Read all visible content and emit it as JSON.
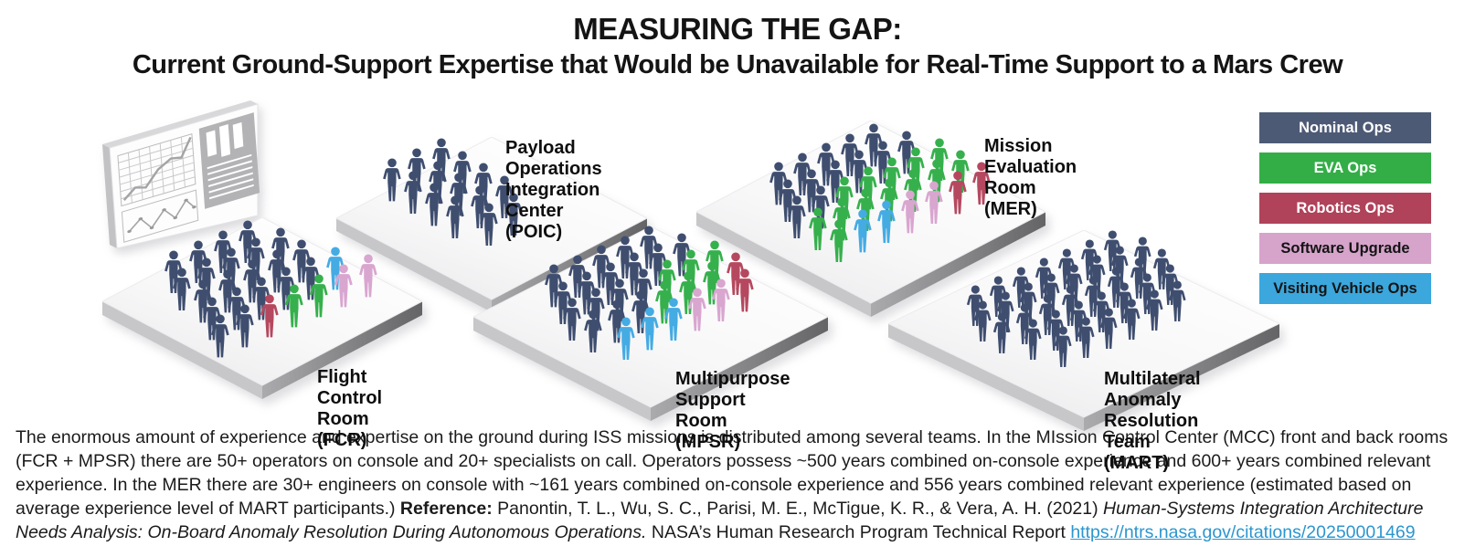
{
  "title": "MEASURING THE GAP:",
  "subtitle": "Current Ground-Support Expertise that Would be Unavailable for Real-Time Support to a Mars Crew",
  "figure_colors": {
    "N": "#3f4e6f",
    "E": "#36b04c",
    "R": "#b5485f",
    "S": "#d9a6d0",
    "V": "#45abe3"
  },
  "legend": {
    "items": [
      {
        "id": "nominal",
        "label": "Nominal Ops",
        "color": "#4d5a75",
        "text_color": "#ffffff"
      },
      {
        "id": "eva",
        "label": "EVA Ops",
        "color": "#33ae47",
        "text_color": "#ffffff"
      },
      {
        "id": "robotics",
        "label": "Robotics Ops",
        "color": "#b0425a",
        "text_color": "#ffffff"
      },
      {
        "id": "software",
        "label": "Software Upgrade",
        "color": "#d6a3cb",
        "text_color": "#141414"
      },
      {
        "id": "visiting",
        "label": "Visiting Vehicle Ops",
        "color": "#3ba7dd",
        "text_color": "#141414"
      }
    ]
  },
  "rooms": [
    {
      "id": "poic",
      "label": "Payload Operations\nIntegration Center (POIC)",
      "counts": {
        "nominal": 14,
        "eva": 0,
        "robotics": 0,
        "software": 0,
        "visiting": 0
      },
      "rows": [
        [
          "N",
          "N",
          "N"
        ],
        [
          "N",
          "N",
          "N"
        ],
        [
          "N",
          "N",
          "N"
        ],
        [
          "N",
          "N",
          "N"
        ],
        [
          "N",
          "N"
        ]
      ]
    },
    {
      "id": "mer",
      "label": "Mission Evaluation\nRoom (MER)",
      "counts": {
        "nominal": 13,
        "eva": 13,
        "robotics": 2,
        "software": 2,
        "visiting": 2
      },
      "rows": [
        [
          "N",
          "N",
          "N",
          "N",
          "N"
        ],
        [
          "N",
          "N",
          "N",
          "N",
          "N",
          "N"
        ],
        [
          "N",
          "N",
          "E",
          "E",
          "E",
          "E",
          "E"
        ],
        [
          "E",
          "E",
          "E",
          "E",
          "E",
          "E",
          "E"
        ],
        [
          "E",
          "V",
          "V",
          "S",
          "S",
          "R",
          "R"
        ]
      ]
    },
    {
      "id": "fcr",
      "label": "Flight Control\nRoom (FCR)",
      "counts": {
        "nominal": 21,
        "eva": 2,
        "robotics": 1,
        "software": 2,
        "visiting": 1
      },
      "rows": [
        [
          "N",
          "N",
          "N",
          "N"
        ],
        [
          "N",
          "N",
          "N",
          "N",
          "N"
        ],
        [
          "N",
          "N",
          "N",
          "N",
          "N"
        ],
        [
          "N",
          "N",
          "N",
          "N",
          "N",
          "V"
        ],
        [
          "N",
          "N",
          "R",
          "E",
          "E",
          "S",
          "S"
        ]
      ]
    },
    {
      "id": "mpsr",
      "label": "Multipurpose Support\nRoom (MPSR)",
      "counts": {
        "nominal": 18,
        "eva": 6,
        "robotics": 2,
        "software": 2,
        "visiting": 3
      },
      "rows": [
        [
          "N",
          "N",
          "N",
          "N",
          "N"
        ],
        [
          "N",
          "N",
          "N",
          "N",
          "N",
          "N"
        ],
        [
          "N",
          "N",
          "N",
          "N",
          "E",
          "E",
          "E"
        ],
        [
          "N",
          "N",
          "N",
          "E",
          "E",
          "E",
          "R"
        ],
        [
          "V",
          "V",
          "V",
          "S",
          "S",
          "R"
        ]
      ]
    },
    {
      "id": "mart",
      "label": "Multilateral Anomaly\nResolution Team (MART)",
      "counts": {
        "nominal": 36,
        "eva": 0,
        "robotics": 0,
        "software": 0,
        "visiting": 0
      },
      "rows": [
        [
          "N",
          "N",
          "N",
          "N",
          "N",
          "N",
          "N"
        ],
        [
          "N",
          "N",
          "N",
          "N",
          "N",
          "N",
          "N",
          "N"
        ],
        [
          "N",
          "N",
          "N",
          "N",
          "N",
          "N",
          "N",
          "N"
        ],
        [
          "N",
          "N",
          "N",
          "N",
          "N",
          "N",
          "N"
        ],
        [
          "N",
          "N",
          "N",
          "N",
          "N",
          "N"
        ]
      ]
    }
  ],
  "footer": {
    "segments": [
      {
        "style": "normal",
        "text": "The enormous amount of experience and expertise on the ground during ISS missions is distributed among several teams. In the MIssion Control Center (MCC) front and back rooms (FCR + MPSR) there are 50+ operators on console and 20+ specialists on call. Operators possess ~500 years combined on-console experience and 600+ years combined relevant experience. In the MER there are 30+ engineers on console with ~161 years combined on-console experience and 556 years combined relevant experience (estimated based on average experience level of MART participants.)  "
      },
      {
        "style": "bold",
        "text": "Reference:"
      },
      {
        "style": "normal",
        "text": " Panontin, T. L., Wu, S. C., Parisi, M. E., McTigue, K. R., & Vera, A. H. (2021) "
      },
      {
        "style": "italic",
        "text": "Human-Systems Integration Architecture Needs Analysis: On-Board Anomaly Resolution During Autonomous Operations."
      },
      {
        "style": "normal",
        "text": " NASA’s Human Research Program Technical Report "
      },
      {
        "style": "link",
        "text": "https://ntrs.nasa.gov/citations/20250001469"
      }
    ]
  }
}
